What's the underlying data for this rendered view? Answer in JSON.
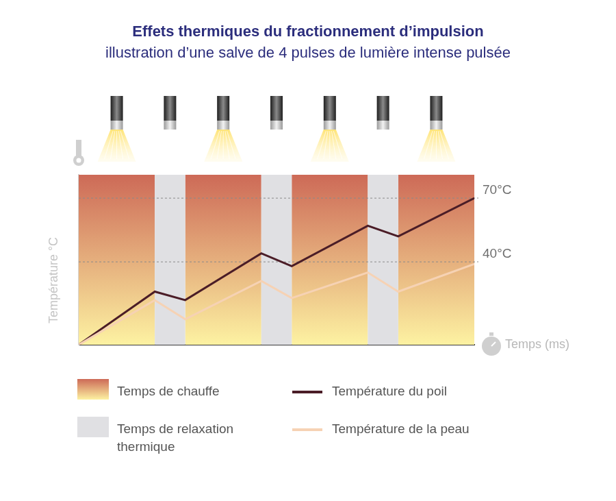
{
  "chart_data": {
    "type": "line",
    "title": "Effets thermiques du fractionnement d’impulsion",
    "subtitle": "illustration d’une salve de 4 pulses de lumière intense pulsée",
    "x_label": "Temps (ms)",
    "y_label": "Température °C",
    "x": [
      0,
      10,
      14,
      24,
      28,
      38,
      42,
      52
    ],
    "series": [
      {
        "name": "Température du poil",
        "color": "#4b1d27",
        "values": [
          1,
          26,
          22,
          44,
          38,
          57,
          52,
          70
        ]
      },
      {
        "name": "Température de la peau",
        "color": "#f6d2b4",
        "values": [
          1,
          22,
          13,
          31,
          23,
          35,
          26,
          39
        ]
      }
    ],
    "bands": [
      {
        "name": "Temps de chauffe",
        "colors": [
          "#cd6a57",
          "#fdf2a2"
        ],
        "ranges": [
          [
            0,
            10
          ],
          [
            14,
            24
          ],
          [
            28,
            38
          ],
          [
            42,
            52
          ]
        ]
      },
      {
        "name": "Temps de relaxation thermique",
        "color": "#e0e0e3",
        "ranges": [
          [
            10,
            14
          ],
          [
            24,
            28
          ],
          [
            38,
            42
          ]
        ]
      }
    ],
    "annotations": [
      {
        "y": 70,
        "text": "70°C"
      },
      {
        "y": 40,
        "text": "40°C"
      }
    ],
    "xlim": [
      0,
      52
    ],
    "ylim": [
      1,
      81
    ],
    "tick_labels": false,
    "grid": false,
    "legend": "bottom"
  }
}
